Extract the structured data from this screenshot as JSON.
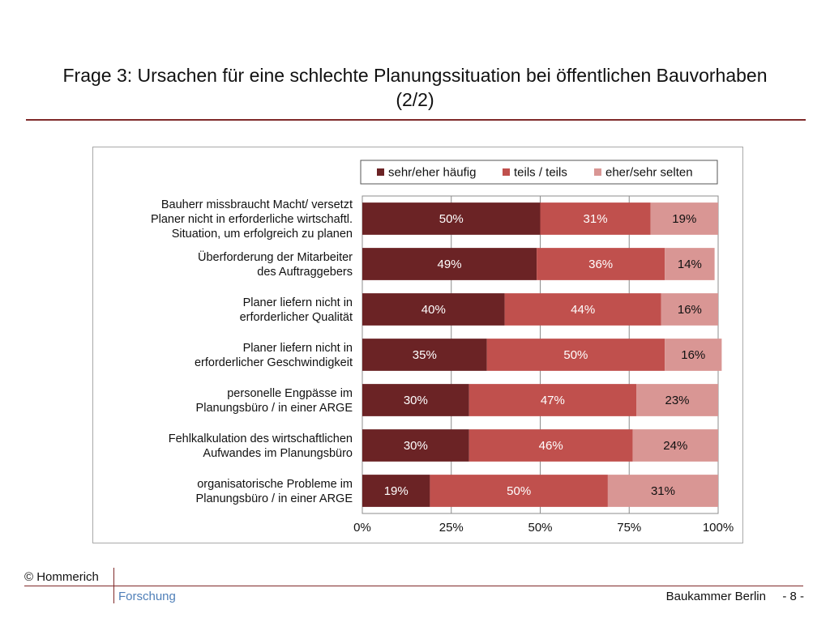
{
  "page": {
    "title_line1": "Frage 3: Ursachen für eine schlechte Planungssituation bei öffentlichen Bauvorhaben",
    "title_line2": "(2/2)"
  },
  "footer": {
    "copyright": "© Hommerich",
    "research": "Forschung",
    "organization": "Baukammer Berlin",
    "page_number": "- 8 -"
  },
  "colors": {
    "accent_rule": "#7f2a2a",
    "footer_link": "#4f7fb8"
  },
  "chart_data": {
    "type": "bar",
    "orientation": "horizontal",
    "stacked": "percent",
    "categories": [
      [
        "Bauherr missbraucht Macht/ versetzt",
        "Planer nicht in erforderliche wirtschaftl.",
        "Situation, um erfolgreich zu planen"
      ],
      [
        "Überforderung der Mitarbeiter",
        "des Auftraggebers"
      ],
      [
        "Planer liefern nicht in",
        "erforderlicher Qualität"
      ],
      [
        "Planer liefern nicht in",
        "erforderlicher Geschwindigkeit"
      ],
      [
        "personelle Engpässe im",
        "Planungsbüro  / in einer ARGE"
      ],
      [
        "Fehlkalkulation des wirtschaftlichen",
        "Aufwandes im Planungsbüro"
      ],
      [
        "organisatorische Probleme im",
        "Planungsbüro  / in einer ARGE"
      ]
    ],
    "series": [
      {
        "name": "sehr/eher häufig",
        "color": "#6b2325",
        "values": [
          50,
          49,
          40,
          35,
          30,
          30,
          19
        ],
        "labels": [
          "50%",
          "49%",
          "40%",
          "35%",
          "30%",
          "30%",
          "19%"
        ],
        "label_color": "#ffffff"
      },
      {
        "name": "teils / teils",
        "color": "#c0504d",
        "values": [
          31,
          36,
          44,
          50,
          47,
          46,
          50
        ],
        "labels": [
          "31%",
          "36%",
          "44%",
          "50%",
          "47%",
          "46%",
          "50%"
        ],
        "label_color": "#ffffff"
      },
      {
        "name": "eher/sehr selten",
        "color": "#d99694",
        "values": [
          19,
          14,
          16,
          16,
          23,
          24,
          31
        ],
        "labels": [
          "19%",
          "14%",
          "16%",
          "16%",
          "23%",
          "24%",
          "31%"
        ],
        "label_color": "#111111"
      }
    ],
    "xlim": [
      0,
      100
    ],
    "xticks": [
      0,
      25,
      50,
      75,
      100
    ],
    "xtick_labels": [
      "0%",
      "25%",
      "50%",
      "75%",
      "100%"
    ],
    "grid": true,
    "legend_position": "top-right"
  }
}
